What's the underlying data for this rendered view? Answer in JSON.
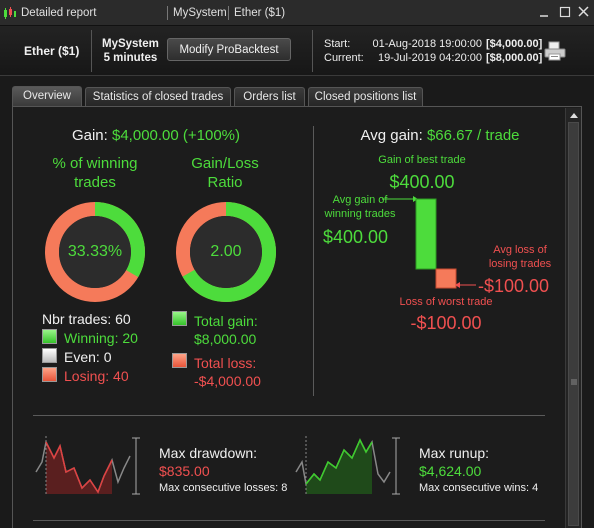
{
  "titlebar": {
    "title": "Detailed report",
    "system": "MySystem",
    "instrument": "Ether ($1)"
  },
  "header": {
    "instrument": "Ether ($1)",
    "system_name": "MySystem",
    "timeframe": "5 minutes",
    "modify_label": "Modify ProBacktest",
    "start_label": "Start:",
    "start_date": "01-Aug-2018 19:00:00",
    "start_amount": "[$4,000.00]",
    "current_label": "Current:",
    "current_date": "19-Jul-2019 04:20:00",
    "current_amount": "[$8,000.00]"
  },
  "tabs": [
    {
      "label": "Overview",
      "active": true
    },
    {
      "label": "Statistics of closed trades",
      "active": false
    },
    {
      "label": "Orders list",
      "active": false
    },
    {
      "label": "Closed positions list",
      "active": false
    }
  ],
  "overview": {
    "gain_label": "Gain:",
    "gain_value": "$4,000.00 (+100%)",
    "winning_title_1": "% of winning",
    "winning_title_2": "trades",
    "winning_pct": "33.33%",
    "winning_fraction": 0.3333,
    "ratio_title_1": "Gain/Loss",
    "ratio_title_2": "Ratio",
    "ratio_value": "2.00",
    "ratio_fraction": 0.6667,
    "nbr_trades": "Nbr trades: 60",
    "winning": "Winning: 20",
    "even": "Even: 0",
    "losing": "Losing: 40",
    "total_gain_label": "Total gain:",
    "total_gain_value": "$8,000.00",
    "total_loss_label": "Total loss:",
    "total_loss_value": "-$4,000.00",
    "avg_gain_label": "Avg gain:",
    "avg_gain_value": "$66.67 / trade",
    "best_trade_label": "Gain of best trade",
    "best_trade_value": "$400.00",
    "avg_win_label_1": "Avg gain of",
    "avg_win_label_2": "winning trades",
    "avg_win_value": "$400.00",
    "avg_loss_label_1": "Avg loss of",
    "avg_loss_label_2": "losing trades",
    "avg_loss_value": "-$100.00",
    "worst_trade_label": "Loss of worst trade",
    "worst_trade_value": "-$100.00",
    "max_drawdown_label": "Max drawdown:",
    "max_drawdown_value": "$835.00",
    "max_consec_losses": "Max consecutive losses: 8",
    "max_runup_label": "Max runup:",
    "max_runup_value": "$4,624.00",
    "max_consec_wins": "Max consecutive wins: 4"
  },
  "colors": {
    "green": "#4ddc3c",
    "red": "#f05050",
    "salmon": "#f57a5a",
    "panel": "#1c1c1c"
  },
  "icons": {
    "app": "candlestick-icon",
    "minimize": "minimize-icon",
    "maximize": "maximize-icon",
    "close": "close-icon",
    "print": "printer-icon"
  }
}
